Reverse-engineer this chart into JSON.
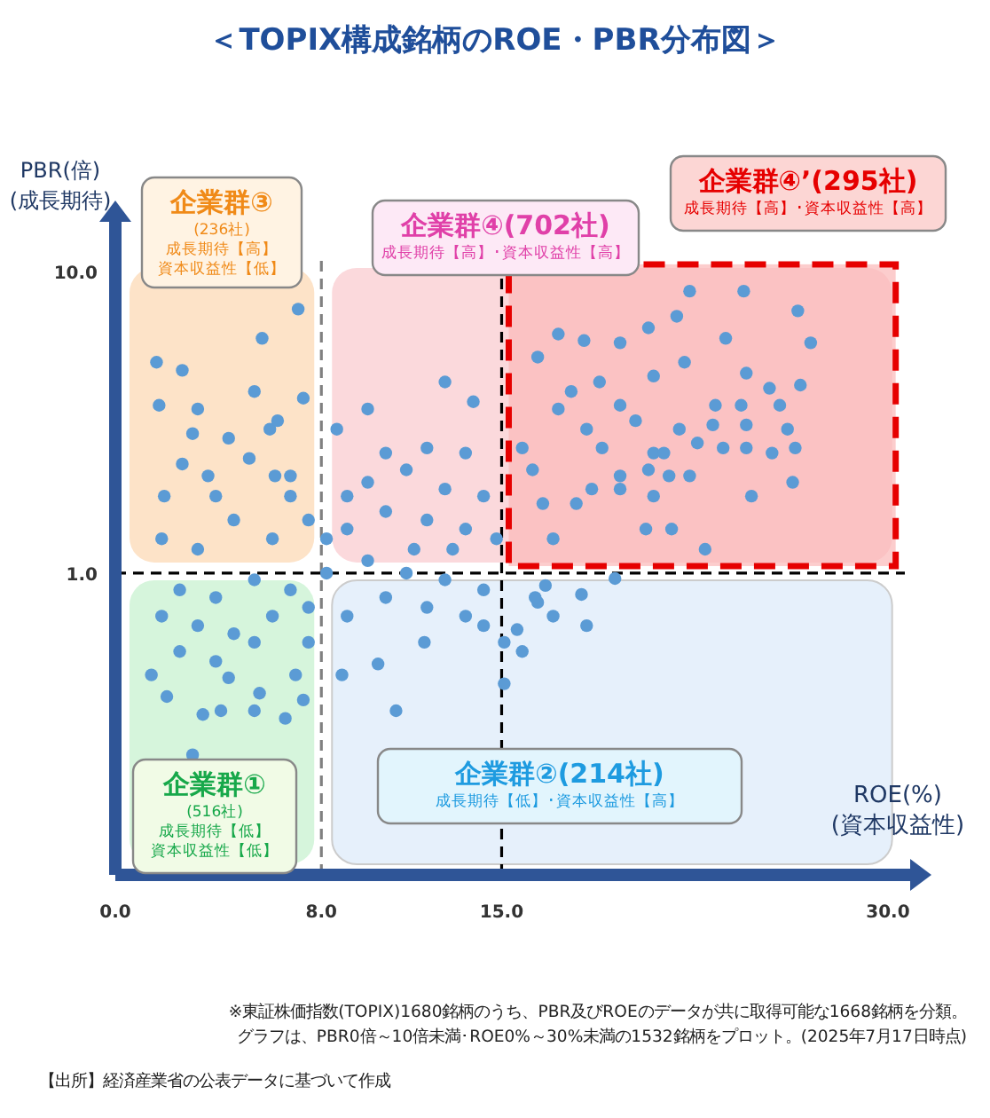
{
  "chart_data": {
    "type": "scatter",
    "title": "＜TOPIX構成銘柄のROE・PBR分布図＞",
    "xlabel": "ROE(%)\n(資本収益性)",
    "ylabel": "PBR(倍)\n(成長期待)",
    "log": "y",
    "xlim": [
      0,
      31
    ],
    "ylim": [
      0.1,
      15
    ],
    "xticks": [
      {
        "value": 0,
        "label": "0.0"
      },
      {
        "value": 8,
        "label": "8.0"
      },
      {
        "value": 15,
        "label": "15.0"
      },
      {
        "value": 30,
        "label": "30.0"
      }
    ],
    "yticks": [
      {
        "value": 1,
        "label": "1.0"
      },
      {
        "value": 10,
        "label": "10.0"
      }
    ],
    "marker": "circle",
    "ref_lines": [
      {
        "axis": "x",
        "value": 8,
        "color": "#808080",
        "line_style": "dashed"
      },
      {
        "axis": "x",
        "value": 15,
        "color": "#000000",
        "line_style": "dashed"
      },
      {
        "axis": "y",
        "value": 1,
        "color": "#000000",
        "line_style": "dashed"
      }
    ],
    "annotations": [
      "企業群①\n(516社)\n成長期待【低】資本収益性【低】",
      "企業群②(214社)\n成長期待【低】･資本収益性【高】",
      "企業群③\n(236社)\n成長期待【高】資本収益性【低】",
      "企業群④(702社)\n成長期待【高】･資本収益性【高】",
      "企業群④’(295社)\n成長期待【高】･資本収益性【高】",
      "※東証株価指数(TOPIX)1680銘柄のうち、PBR及びROEのデータが共に取得可能な1668銘柄を分類。グラフは、PBR0倍～10倍未満･ROE0%～30%未満の1532銘柄をプロット。(2025年7月17日時点)",
      "【出所】経済産業省の公表データに基づいて作成"
    ],
    "series": [
      {
        "color": "#5b9bd5",
        "x": [
          7.1,
          5.7,
          1.6,
          2.6,
          5.4,
          1.7,
          3.2,
          7.3,
          6.0,
          6.3,
          3.0,
          4.4,
          2.6,
          3.6,
          5.2,
          1.9,
          6.2,
          6.8,
          22.3,
          24.4,
          26.5,
          27.0,
          17.2,
          20.7,
          21.8,
          23.7,
          18.2,
          19.6,
          16.4,
          22.1,
          24.5,
          25.4,
          26.6,
          18.8,
          20.9,
          23.3,
          24.3,
          25.8,
          19.6,
          17.7,
          17.2,
          21.9,
          23.2,
          24.5,
          26.1,
          20.2,
          18.3,
          18.9,
          20.9,
          22.6,
          23.6,
          24.5,
          26.4,
          25.5,
          21.3,
          19.6,
          20.7,
          21.5,
          22.3,
          19.6,
          18.5,
          24.7,
          26.3,
          20.9,
          17.9,
          20.6,
          21.6,
          22.9,
          17.0,
          16.2,
          16.6,
          15.8,
          1.4,
          2.0,
          3.4,
          4.1,
          5.4,
          6.6,
          7.3,
          3.0,
          10.9,
          10.2,
          8.8,
          12.0,
          14.3,
          15.8,
          16.4,
          15.6,
          15.1,
          7.0,
          4.4,
          5.6,
          1.8,
          3.2,
          4.6,
          6.1,
          7.5,
          9.0,
          10.5,
          12.1,
          13.6,
          14.8,
          2.5,
          3.9,
          5.4,
          6.8,
          8.2,
          9.8,
          11.3,
          12.8,
          14.3,
          1.8,
          3.2,
          4.6,
          6.1,
          7.5,
          9.0,
          10.5,
          12.1,
          13.6,
          8.2,
          9.8,
          11.3,
          12.8,
          14.3,
          12.1,
          10.5,
          13.6,
          9.0,
          6.8,
          3.9,
          5.4,
          2.5,
          7.5,
          3.9,
          11.6,
          13.1,
          16.3,
          17.0,
          18.3,
          15.1,
          19.4,
          16.7,
          18.1,
          9.8,
          12.8,
          8.6,
          13.9
        ],
        "values": [
          7.5,
          6.0,
          5.0,
          4.7,
          4.0,
          3.6,
          3.5,
          3.8,
          3.0,
          3.2,
          2.9,
          2.8,
          2.3,
          2.1,
          2.4,
          1.8,
          2.1,
          2.1,
          8.6,
          8.6,
          7.4,
          5.8,
          6.2,
          6.5,
          7.1,
          6.0,
          5.9,
          5.8,
          5.2,
          5.0,
          4.6,
          4.1,
          4.2,
          4.3,
          4.5,
          3.6,
          3.6,
          3.6,
          3.6,
          4.0,
          3.5,
          3.0,
          3.1,
          3.1,
          3.0,
          3.2,
          3.0,
          2.6,
          2.5,
          2.7,
          2.6,
          2.6,
          2.6,
          2.5,
          2.5,
          2.1,
          2.2,
          2.1,
          2.1,
          1.9,
          1.9,
          1.8,
          2.0,
          1.8,
          1.7,
          1.4,
          1.4,
          1.2,
          1.3,
          2.2,
          1.7,
          2.6,
          0.46,
          0.39,
          0.34,
          0.35,
          0.35,
          0.33,
          0.38,
          0.25,
          0.35,
          0.5,
          0.46,
          0.59,
          0.67,
          0.55,
          0.8,
          0.65,
          0.43,
          0.46,
          0.45,
          0.4,
          1.3,
          1.2,
          1.5,
          1.3,
          1.5,
          1.4,
          1.6,
          1.5,
          1.4,
          1.3,
          0.88,
          0.83,
          0.95,
          0.88,
          1.0,
          1.1,
          1.0,
          0.95,
          0.88,
          0.72,
          0.67,
          0.63,
          0.72,
          0.77,
          0.72,
          0.83,
          0.77,
          0.72,
          1.3,
          2.0,
          2.2,
          1.9,
          1.8,
          2.6,
          2.5,
          2.5,
          1.8,
          1.8,
          1.8,
          0.59,
          0.55,
          0.59,
          0.51,
          1.2,
          1.2,
          0.83,
          0.72,
          0.67,
          0.59,
          0.96,
          0.91,
          0.85,
          3.5,
          4.3,
          3.0,
          3.7
        ]
      }
    ]
  }
}
